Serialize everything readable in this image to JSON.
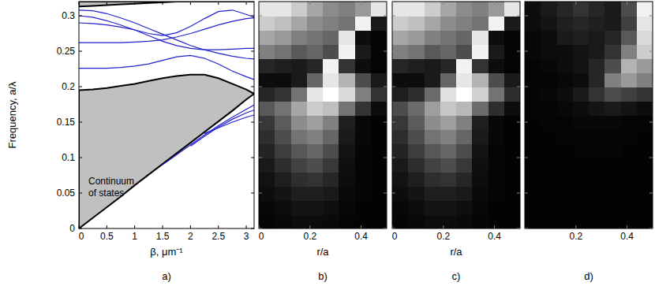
{
  "chart_data": [
    {
      "type": "line",
      "title": "a)",
      "x_label": "β, μm⁻¹",
      "y_label": "Frequency, a/λ",
      "annotations": [
        "Continuum of states"
      ],
      "x": [
        0,
        0.25,
        0.5,
        0.75,
        1,
        1.25,
        1.5,
        1.75,
        2,
        2.25,
        2.5,
        2.75,
        3,
        3.14
      ],
      "xlim": [
        0,
        3.14
      ],
      "ylim": [
        0,
        0.32
      ],
      "xticks": [
        0,
        0.5,
        1,
        1.5,
        2,
        2.5,
        3
      ],
      "yticks": [
        0,
        0.05,
        0.1,
        0.15,
        0.2,
        0.25,
        0.3
      ],
      "series": [
        {
          "type": "area",
          "color": "#c0c0c0",
          "values": [
            0.195,
            0.196,
            0.198,
            0.201,
            0.204,
            0.208,
            0.212,
            0.215,
            0.217,
            0.217,
            0.212,
            0.204,
            0.196,
            0.19
          ],
          "lower": [
            0,
            0.015,
            0.03,
            0.045,
            0.061,
            0.076,
            0.091,
            0.106,
            0.121,
            0.136,
            0.151,
            0.166,
            0.182,
            0.19
          ]
        },
        {
          "type": "area",
          "color": "#c0c0c0",
          "values": [
            0.32,
            0.32,
            0.32,
            0.32,
            0.32,
            0.32,
            0.32,
            0.32,
            0.32,
            0.32,
            0.32,
            0.32,
            0.32,
            0.32
          ],
          "lower": [
            0.313,
            0.314,
            0.315,
            0.316,
            0.317,
            0.318,
            0.319,
            0.32,
            0.32,
            0.32,
            0.32,
            0.32,
            0.32,
            0.32
          ]
        },
        {
          "color": "#2020d0",
          "values": [
            0.308,
            0.307,
            0.303,
            0.297,
            0.29,
            0.282,
            0.274,
            0.266,
            0.258,
            0.252,
            0.247,
            0.243,
            0.24,
            0.239
          ]
        },
        {
          "color": "#2020d0",
          "values": [
            0.3,
            0.298,
            0.293,
            0.287,
            0.28,
            0.272,
            0.264,
            0.258,
            0.254,
            0.252,
            0.252,
            0.253,
            0.254,
            0.254
          ]
        },
        {
          "color": "#2020d0",
          "values": [
            0.29,
            0.289,
            0.287,
            0.284,
            0.28,
            0.275,
            0.272,
            0.276,
            0.285,
            0.296,
            0.306,
            0.308,
            0.302,
            0.298
          ]
        },
        {
          "color": "#2020d0",
          "values": [
            0.262,
            0.262,
            0.262,
            0.262,
            0.263,
            0.264,
            0.266,
            0.27,
            0.275,
            0.281,
            0.287,
            0.292,
            0.296,
            0.297
          ]
        },
        {
          "color": "#2020d0",
          "values": [
            0.226,
            0.226,
            0.226,
            0.227,
            0.229,
            0.232,
            0.237,
            0.242,
            0.244,
            0.24,
            0.232,
            0.222,
            0.214,
            0.21
          ]
        },
        {
          "color": "#2020d0",
          "values": [
            null,
            null,
            null,
            null,
            null,
            null,
            0.09,
            0.104,
            0.118,
            0.132,
            0.145,
            0.157,
            0.168,
            0.174
          ]
        },
        {
          "color": "#2020d0",
          "values": [
            null,
            null,
            null,
            null,
            null,
            null,
            null,
            null,
            0.116,
            0.13,
            0.143,
            0.154,
            0.163,
            0.167
          ]
        },
        {
          "color": "#2020d0",
          "values": [
            null,
            null,
            null,
            null,
            null,
            null,
            null,
            null,
            null,
            0.134,
            0.142,
            0.15,
            0.157,
            0.16
          ]
        }
      ]
    },
    {
      "type": "heatmap",
      "title": "b)",
      "x_label": "r/a",
      "xlim": [
        0,
        0.5
      ],
      "ylim": [
        0,
        0.32
      ],
      "xticks": [
        0,
        0.2,
        0.4
      ],
      "yticks": [
        0,
        0.05,
        0.1,
        0.15,
        0.2,
        0.25,
        0.3
      ],
      "tick_labels": "x",
      "color": "#ffffff",
      "zlim": [
        0,
        1
      ],
      "x_edges": [
        0,
        0.0625,
        0.125,
        0.1875,
        0.25,
        0.3125,
        0.375,
        0.4375,
        0.5
      ],
      "y_edges": [
        0,
        0.02,
        0.04,
        0.06,
        0.08,
        0.1,
        0.12,
        0.14,
        0.16,
        0.18,
        0.2,
        0.22,
        0.24,
        0.26,
        0.28,
        0.3,
        0.32
      ],
      "cells": [
        [
          0.02,
          0.03,
          0.05,
          0.05,
          0.04,
          0.02,
          0.01,
          0.01
        ],
        [
          0.03,
          0.05,
          0.08,
          0.08,
          0.06,
          0.03,
          0.01,
          0.01
        ],
        [
          0.05,
          0.08,
          0.12,
          0.12,
          0.1,
          0.04,
          0.02,
          0.01
        ],
        [
          0.07,
          0.12,
          0.18,
          0.2,
          0.15,
          0.05,
          0.02,
          0.01
        ],
        [
          0.1,
          0.18,
          0.26,
          0.3,
          0.22,
          0.06,
          0.02,
          0.01
        ],
        [
          0.14,
          0.24,
          0.34,
          0.4,
          0.3,
          0.08,
          0.02,
          0.01
        ],
        [
          0.18,
          0.3,
          0.45,
          0.5,
          0.4,
          0.1,
          0.03,
          0.01
        ],
        [
          0.22,
          0.36,
          0.55,
          0.62,
          0.5,
          0.12,
          0.03,
          0.01
        ],
        [
          0.35,
          0.45,
          0.65,
          0.8,
          0.75,
          0.45,
          0.2,
          0.05
        ],
        [
          0.15,
          0.2,
          0.45,
          0.9,
          1,
          0.85,
          0.5,
          0.2
        ],
        [
          0.05,
          0.05,
          0.1,
          0.4,
          0.9,
          0.7,
          0.3,
          0.1
        ],
        [
          0.15,
          0.12,
          0.1,
          0.15,
          0.95,
          0.2,
          0.05,
          0.02
        ],
        [
          0.5,
          0.45,
          0.35,
          0.4,
          0.3,
          0.95,
          0.1,
          0.02
        ],
        [
          0.65,
          0.6,
          0.5,
          0.45,
          0.4,
          0.9,
          0.05,
          0.02
        ],
        [
          0.8,
          0.75,
          0.65,
          0.55,
          0.5,
          0.45,
          0.95,
          0.1
        ],
        [
          0.9,
          0.9,
          0.8,
          0.65,
          0.55,
          0.5,
          0.6,
          0.9
        ]
      ]
    },
    {
      "type": "heatmap",
      "title": "c)",
      "x_label": "r/a",
      "xlim": [
        0,
        0.5
      ],
      "ylim": [
        0,
        0.32
      ],
      "xticks": [
        0,
        0.2,
        0.4
      ],
      "yticks": [
        0,
        0.05,
        0.1,
        0.15,
        0.2,
        0.25,
        0.3
      ],
      "tick_labels": "x",
      "color": "#ffffff",
      "zlim": [
        0,
        1
      ],
      "x_edges": [
        0,
        0.0625,
        0.125,
        0.1875,
        0.25,
        0.3125,
        0.375,
        0.4375,
        0.5
      ],
      "y_edges": [
        0,
        0.02,
        0.04,
        0.06,
        0.08,
        0.1,
        0.12,
        0.14,
        0.16,
        0.18,
        0.2,
        0.22,
        0.24,
        0.26,
        0.28,
        0.3,
        0.32
      ],
      "cells": [
        [
          0.02,
          0.03,
          0.05,
          0.05,
          0.04,
          0.02,
          0.01,
          0.01
        ],
        [
          0.03,
          0.05,
          0.08,
          0.08,
          0.06,
          0.03,
          0.01,
          0.01
        ],
        [
          0.05,
          0.08,
          0.12,
          0.12,
          0.1,
          0.04,
          0.02,
          0.01
        ],
        [
          0.07,
          0.12,
          0.18,
          0.2,
          0.15,
          0.05,
          0.02,
          0.01
        ],
        [
          0.1,
          0.18,
          0.26,
          0.3,
          0.22,
          0.06,
          0.02,
          0.01
        ],
        [
          0.14,
          0.24,
          0.34,
          0.4,
          0.3,
          0.08,
          0.02,
          0.01
        ],
        [
          0.18,
          0.3,
          0.45,
          0.5,
          0.4,
          0.1,
          0.03,
          0.01
        ],
        [
          0.22,
          0.36,
          0.55,
          0.62,
          0.5,
          0.12,
          0.03,
          0.01
        ],
        [
          0.3,
          0.42,
          0.62,
          0.78,
          0.72,
          0.42,
          0.18,
          0.05
        ],
        [
          0.12,
          0.18,
          0.42,
          0.88,
          1,
          0.82,
          0.45,
          0.18
        ],
        [
          0.05,
          0.05,
          0.1,
          0.4,
          0.9,
          0.7,
          0.3,
          0.1
        ],
        [
          0.15,
          0.12,
          0.1,
          0.15,
          0.95,
          0.2,
          0.05,
          0.02
        ],
        [
          0.5,
          0.45,
          0.35,
          0.4,
          0.3,
          0.95,
          0.1,
          0.02
        ],
        [
          0.65,
          0.6,
          0.5,
          0.45,
          0.4,
          0.9,
          0.05,
          0.02
        ],
        [
          0.8,
          0.75,
          0.65,
          0.55,
          0.5,
          0.45,
          0.95,
          0.1
        ],
        [
          0.9,
          0.9,
          0.8,
          0.65,
          0.55,
          0.5,
          0.6,
          0.9
        ]
      ]
    },
    {
      "type": "heatmap",
      "title": "d)",
      "x_label": "",
      "xlim": [
        0,
        0.5
      ],
      "ylim": [
        0,
        0.32
      ],
      "xticks": [
        0.2,
        0.4
      ],
      "yticks": [
        0,
        0.05,
        0.1,
        0.15,
        0.2,
        0.25,
        0.3
      ],
      "tick_labels": "x",
      "color": "#ffffff",
      "zlim": [
        0,
        1
      ],
      "x_edges": [
        0,
        0.0625,
        0.125,
        0.1875,
        0.25,
        0.3125,
        0.375,
        0.4375,
        0.5
      ],
      "y_edges": [
        0,
        0.02,
        0.04,
        0.06,
        0.08,
        0.1,
        0.12,
        0.14,
        0.16,
        0.18,
        0.2,
        0.22,
        0.24,
        0.26,
        0.28,
        0.3,
        0.32
      ],
      "cells": [
        [
          0.01,
          0.01,
          0.01,
          0.01,
          0.01,
          0.01,
          0.01,
          0.01
        ],
        [
          0.01,
          0.01,
          0.01,
          0.01,
          0.01,
          0.01,
          0.01,
          0.01
        ],
        [
          0.01,
          0.01,
          0.01,
          0.01,
          0.01,
          0.01,
          0.01,
          0.01
        ],
        [
          0.01,
          0.01,
          0.01,
          0.01,
          0.01,
          0.01,
          0.01,
          0.01
        ],
        [
          0.01,
          0.01,
          0.01,
          0.01,
          0.01,
          0.01,
          0.01,
          0.01
        ],
        [
          0.01,
          0.01,
          0.01,
          0.02,
          0.02,
          0.02,
          0.01,
          0.01
        ],
        [
          0.01,
          0.01,
          0.02,
          0.02,
          0.02,
          0.02,
          0.02,
          0.01
        ],
        [
          0.01,
          0.02,
          0.02,
          0.03,
          0.03,
          0.03,
          0.02,
          0.02
        ],
        [
          0.02,
          0.02,
          0.03,
          0.05,
          0.08,
          0.1,
          0.08,
          0.05
        ],
        [
          0.02,
          0.03,
          0.05,
          0.1,
          0.2,
          0.3,
          0.25,
          0.2
        ],
        [
          0.02,
          0.02,
          0.03,
          0.05,
          0.15,
          0.5,
          0.6,
          0.5
        ],
        [
          0.02,
          0.03,
          0.05,
          0.08,
          0.15,
          0.3,
          0.7,
          0.6
        ],
        [
          0.03,
          0.05,
          0.05,
          0.08,
          0.1,
          0.2,
          0.5,
          0.8
        ],
        [
          0.03,
          0.05,
          0.1,
          0.12,
          0.1,
          0.15,
          0.35,
          0.85
        ],
        [
          0.05,
          0.08,
          0.12,
          0.15,
          0.12,
          0.1,
          0.25,
          0.9
        ],
        [
          0.05,
          0.1,
          0.15,
          0.2,
          0.15,
          0.1,
          0.3,
          0.95
        ]
      ]
    }
  ]
}
